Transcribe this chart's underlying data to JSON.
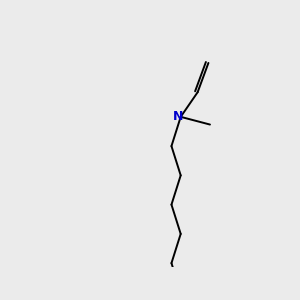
{
  "bg_color": "#ebebeb",
  "bond_color": "#000000",
  "N_color": "#0000cc",
  "O_color": "#cc0000",
  "H_color": "#808080"
}
